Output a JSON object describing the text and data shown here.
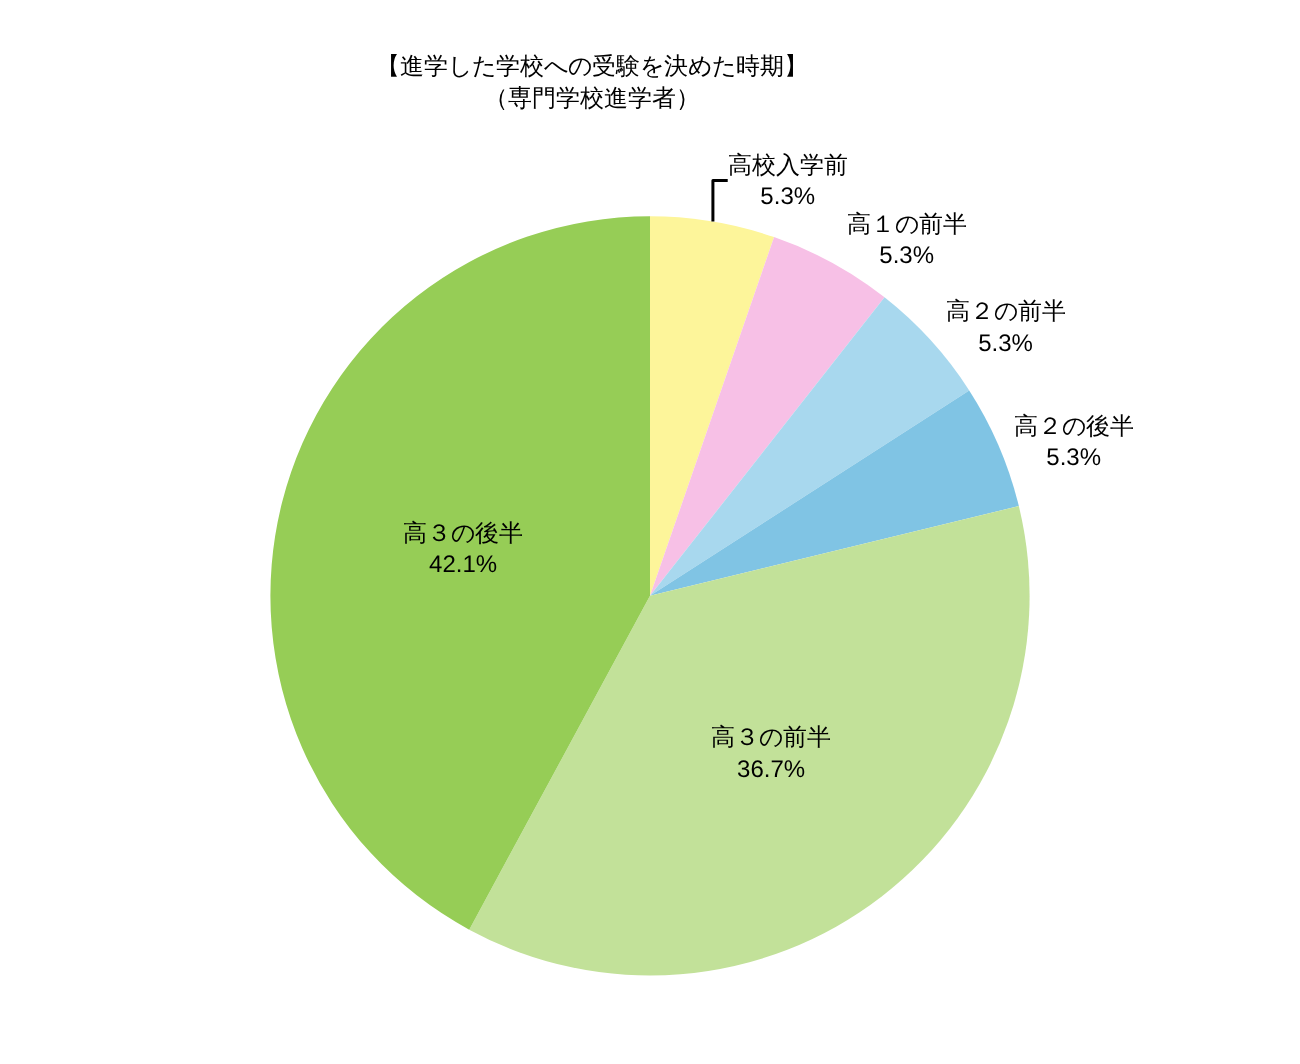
{
  "chart_data": {
    "type": "pie",
    "title": "【進学した学校への受験を決めた時期】",
    "subtitle": "（専門学校進学者）",
    "categories": [
      "高校入学前",
      "高１の前半",
      "高２の前半",
      "高２の後半",
      "高３の前半",
      "高３の後半"
    ],
    "values": [
      5.3,
      5.3,
      5.3,
      5.3,
      36.7,
      42.1
    ],
    "value_labels": [
      "5.3%",
      "5.3%",
      "5.3%",
      "5.3%",
      "36.7%",
      "42.1%"
    ],
    "colors": [
      "#fdf59a",
      "#f7c0e6",
      "#a8d8ee",
      "#80c4e4",
      "#c2e199",
      "#96cd56"
    ],
    "legend": false
  }
}
